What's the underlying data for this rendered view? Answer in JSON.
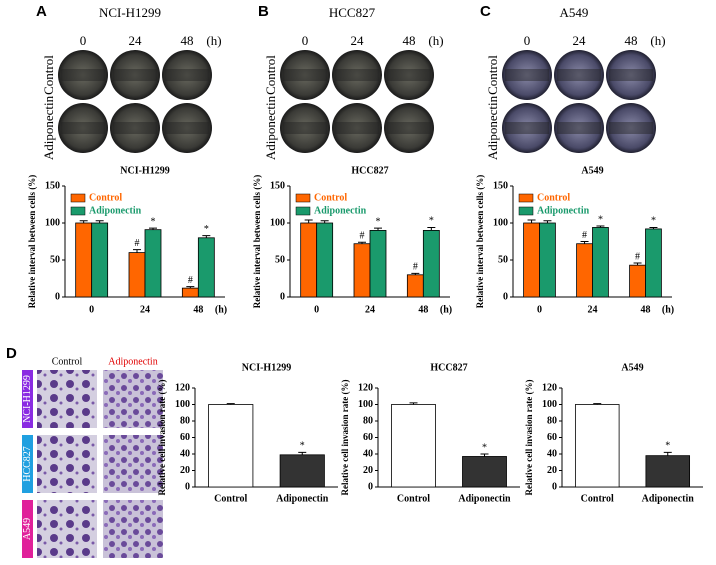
{
  "figure": {
    "panel_labels": [
      "A",
      "B",
      "C",
      "D"
    ],
    "top_titles": [
      "NCI-H1299",
      "HCC827",
      "A549"
    ],
    "time_labels": [
      "0",
      "24",
      "48",
      "(h)"
    ],
    "row_labels": [
      "Control",
      "Adiponectin"
    ],
    "d_column_labels": [
      "Control",
      "Adiponectin"
    ],
    "d_row_labels": [
      "NCI-H1299",
      "HCC827",
      "A549"
    ]
  },
  "chart_data": [
    {
      "type": "bar",
      "title": "NCI-H1299",
      "y_label": "Relative interval between cells (%)",
      "x_unit": "(h)",
      "categories": [
        "0",
        "24",
        "48"
      ],
      "ylim": [
        0,
        150
      ],
      "yticks": [
        0,
        50,
        100,
        150
      ],
      "legend": "top-left",
      "series": [
        {
          "name": "Control",
          "color": "#ff6600",
          "values": [
            100,
            60,
            12
          ],
          "errors": [
            3,
            4,
            2
          ],
          "markers": [
            null,
            "#",
            "#"
          ]
        },
        {
          "name": "Adiponectin",
          "color": "#1a9a6c",
          "values": [
            100,
            91,
            80
          ],
          "errors": [
            3,
            2,
            3
          ],
          "markers": [
            null,
            "*",
            "*"
          ]
        }
      ]
    },
    {
      "type": "bar",
      "title": "HCC827",
      "y_label": "Relative interval between cells (%)",
      "x_unit": "(h)",
      "categories": [
        "0",
        "24",
        "48"
      ],
      "ylim": [
        0,
        150
      ],
      "yticks": [
        0,
        50,
        100,
        150
      ],
      "legend": "top-left",
      "series": [
        {
          "name": "Control",
          "color": "#ff6600",
          "values": [
            100,
            72,
            30
          ],
          "errors": [
            4,
            2,
            2
          ],
          "markers": [
            null,
            "#",
            "#"
          ]
        },
        {
          "name": "Adiponectin",
          "color": "#1a9a6c",
          "values": [
            100,
            90,
            90
          ],
          "errors": [
            3,
            3,
            4
          ],
          "markers": [
            null,
            "*",
            "*"
          ]
        }
      ]
    },
    {
      "type": "bar",
      "title": "A549",
      "y_label": "Relative interval between cells (%)",
      "x_unit": "(h)",
      "categories": [
        "0",
        "24",
        "48"
      ],
      "ylim": [
        0,
        150
      ],
      "yticks": [
        0,
        50,
        100,
        150
      ],
      "legend": "top-left",
      "series": [
        {
          "name": "Control",
          "color": "#ff6600",
          "values": [
            100,
            72,
            43
          ],
          "errors": [
            4,
            3,
            3
          ],
          "markers": [
            null,
            "#",
            "#"
          ]
        },
        {
          "name": "Adiponectin",
          "color": "#1a9a6c",
          "values": [
            100,
            94,
            92
          ],
          "errors": [
            3,
            2,
            2
          ],
          "markers": [
            null,
            "*",
            "*"
          ]
        }
      ]
    },
    {
      "type": "bar",
      "title": "NCI-H1299",
      "y_label": "Relative cell invasion rate (%)",
      "categories": [
        "Control",
        "Adiponectin"
      ],
      "values": [
        100,
        39
      ],
      "errors": [
        1,
        3
      ],
      "markers": [
        null,
        "*"
      ],
      "colors": [
        "#ffffff",
        "#333333"
      ],
      "ylim": [
        0,
        120
      ],
      "yticks": [
        0,
        20,
        40,
        60,
        80,
        100,
        120
      ]
    },
    {
      "type": "bar",
      "title": "HCC827",
      "y_label": "Relative cell invasion rate (%)",
      "categories": [
        "Control",
        "Adiponectin"
      ],
      "values": [
        100,
        37
      ],
      "errors": [
        2,
        3
      ],
      "markers": [
        null,
        "*"
      ],
      "colors": [
        "#ffffff",
        "#333333"
      ],
      "ylim": [
        0,
        120
      ],
      "yticks": [
        0,
        20,
        40,
        60,
        80,
        100,
        120
      ]
    },
    {
      "type": "bar",
      "title": "A549",
      "y_label": "Relative cell invasion rate (%)",
      "categories": [
        "Control",
        "Adiponectin"
      ],
      "values": [
        100,
        38
      ],
      "errors": [
        1,
        4
      ],
      "markers": [
        null,
        "*"
      ],
      "colors": [
        "#ffffff",
        "#333333"
      ],
      "ylim": [
        0,
        120
      ],
      "yticks": [
        0,
        20,
        40,
        60,
        80,
        100,
        120
      ]
    }
  ]
}
